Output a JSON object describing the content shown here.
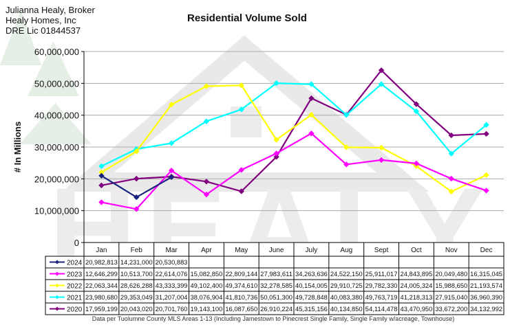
{
  "header": {
    "line1": "Julianna Healy, Broker",
    "line2": "Healy Homes, Inc",
    "line3": "DRE Lic 01844537"
  },
  "watermark": {
    "text": "HEALY"
  },
  "chart_data": {
    "type": "line",
    "title": "Residential Volume Sold",
    "ylabel": "# In Millions",
    "xlabel": "",
    "footnote": "Data per Tuolumne County MLS Areas 1-13 (Including Jamestown to Pinecrest Single Family, Single Family w/acreage, Townhouse)",
    "ylim": [
      0,
      60000000
    ],
    "yticks": [
      0,
      10000000,
      20000000,
      30000000,
      40000000,
      50000000,
      60000000
    ],
    "ytick_labels": [
      "0",
      "10,000,000",
      "20,000,000",
      "30,000,000",
      "40,000,000",
      "50,000,000",
      "60,000,000"
    ],
    "categories": [
      "Jan",
      "Feb",
      "Mar",
      "Apr",
      "May",
      "June",
      "July",
      "Aug",
      "Sept",
      "Oct",
      "Nov",
      "Dec"
    ],
    "grid": true,
    "legend": "data-table",
    "series": [
      {
        "name": "2024",
        "color": "#1a237e",
        "values": [
          20982813,
          14231000,
          20530883,
          null,
          null,
          null,
          null,
          null,
          null,
          null,
          null,
          null
        ],
        "labels": [
          "20,982,813",
          "14,231,000",
          "20,530,883",
          "",
          "",
          "",
          "",
          "",
          "",
          "",
          "",
          ""
        ]
      },
      {
        "name": "2023",
        "color": "#ff00ff",
        "values": [
          12646299,
          10513700,
          22614076,
          15082850,
          22809144,
          27983611,
          34263636,
          24522150,
          25911017,
          24843895,
          20049480,
          16315045
        ],
        "labels": [
          "12,646,299",
          "10,513,700",
          "22,614,076",
          "15,082,850",
          "22,809,144",
          "27,983,611",
          "34,263,636",
          "24,522,150",
          "25,911,017",
          "24,843,895",
          "20,049,480",
          "16,315,045"
        ]
      },
      {
        "name": "2022",
        "color": "#ffff00",
        "values": [
          22063344,
          28626288,
          43333399,
          49102400,
          49374610,
          32278585,
          40154005,
          29910725,
          29782330,
          24005324,
          15988650,
          21193574
        ],
        "labels": [
          "22,063,344",
          "28,626,288",
          "43,333,399",
          "49,102,400",
          "49,374,610",
          "32,278,585",
          "40,154,005",
          "29,910,725",
          "29,782,330",
          "24,005,324",
          "15,988,650",
          "21,193,574"
        ]
      },
      {
        "name": "2021",
        "color": "#00ffff",
        "values": [
          23980680,
          29353049,
          31207004,
          38076904,
          41810736,
          50051300,
          49728848,
          40083380,
          49763719,
          41218313,
          27915040,
          36960390
        ],
        "labels": [
          "23,980,680",
          "29,353,049",
          "31,207,004",
          "38,076,904",
          "41,810,736",
          "50,051,300",
          "49,728,848",
          "40,083,380",
          "49,763,719",
          "41,218,313",
          "27,915,040",
          "36,960,390"
        ]
      },
      {
        "name": "2020",
        "color": "#800080",
        "values": [
          17959199,
          20043020,
          20701760,
          19143100,
          16087650,
          26910224,
          45315156,
          40134850,
          54114478,
          43470950,
          33672200,
          34132992
        ],
        "labels": [
          "17,959,199",
          "20,043,020",
          "20,701,760",
          "19,143,100",
          "16,087,650",
          "26,910,224",
          "45,315,156",
          "40,134,850",
          "54,114,478",
          "43,470,950",
          "33,672,200",
          "34,132,992"
        ]
      }
    ]
  }
}
